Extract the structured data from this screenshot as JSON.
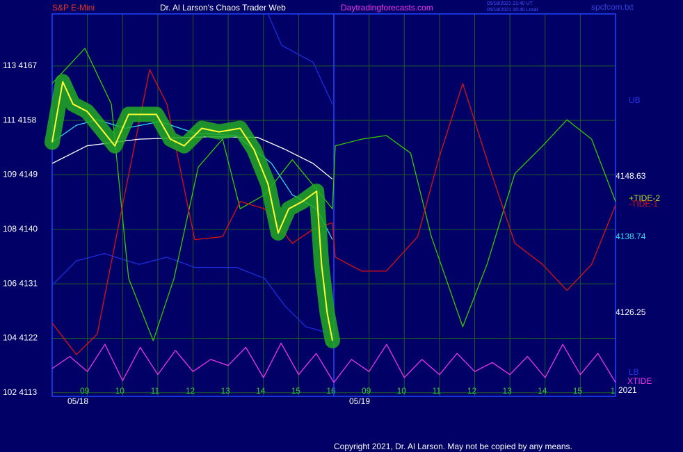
{
  "chart_data": {
    "type": "line",
    "title": "Dr. Al Larson's Chaos Trader Web",
    "symbol": "S&P E-Mini",
    "site": "Daytradingforecasts.com",
    "timestamp_ut": "05/18/2021 21:40 UT",
    "timestamp_local": "05/18/2021 16:40 Local",
    "file": "spcfcom.txt",
    "copyright": "Copyright 2021, Dr. Al Larson. May not be copied by any means.",
    "dates": [
      "05/18",
      "05/19"
    ],
    "year": "2021",
    "level_labels": [
      "4148.63",
      "4138.74",
      "4126.25"
    ],
    "xlim": [
      0,
      16
    ],
    "xticks": [
      {
        "value": 1,
        "label": "09"
      },
      {
        "value": 2,
        "label": "10"
      },
      {
        "value": 3,
        "label": "11"
      },
      {
        "value": 4,
        "label": "12"
      },
      {
        "value": 5,
        "label": "13"
      },
      {
        "value": 6,
        "label": "14"
      },
      {
        "value": 7,
        "label": "15"
      },
      {
        "value": 8,
        "label": "16"
      },
      {
        "value": 9,
        "label": "09"
      },
      {
        "value": 10,
        "label": "10"
      },
      {
        "value": 11,
        "label": "11"
      },
      {
        "value": 12,
        "label": "12"
      },
      {
        "value": 13,
        "label": "13"
      },
      {
        "value": 14,
        "label": "14"
      },
      {
        "value": 15,
        "label": "15"
      },
      {
        "value": 16,
        "label": "1"
      }
    ],
    "ylim": [
      4112.4,
      4175.6
    ],
    "yticks": [
      {
        "value": 4167,
        "label": "113  4167"
      },
      {
        "value": 4158,
        "label": "111  4158"
      },
      {
        "value": 4149,
        "label": "109  4149"
      },
      {
        "value": 4140,
        "label": "108  4140"
      },
      {
        "value": 4131,
        "label": "106  4131"
      },
      {
        "value": 4122,
        "label": "104  4122"
      },
      {
        "value": 4113,
        "label": "102  4113"
      }
    ],
    "grid": true,
    "series": [
      {
        "name": "UB",
        "color": "#1a2ee0",
        "x": [
          6.13,
          6.52,
          7.41,
          7.96
        ],
        "values": [
          4175.6,
          4170.4,
          4167.6,
          4160.7
        ]
      },
      {
        "name": "LB",
        "color": "#1a2ee0",
        "x": [
          0,
          0.69,
          1.48,
          2.47,
          3.26,
          4.05,
          5.24,
          6.03,
          6.62,
          7.21,
          7.96
        ],
        "values": [
          4130.8,
          4134.8,
          4136.0,
          4134.2,
          4135.4,
          4133.7,
          4133.7,
          4131.9,
          4127.3,
          4123.9,
          4122.7
        ]
      },
      {
        "name": "+TIDE-2",
        "color": "#33cc00",
        "x": [
          0,
          0.93,
          1.68,
          2.17,
          2.87,
          3.46,
          4.15,
          4.84,
          5.34,
          6.03,
          6.82,
          7.96,
          8.04,
          8.79,
          9.49,
          10.18,
          10.77,
          11.66,
          12.35,
          13.14,
          13.93,
          14.62,
          15.32,
          16.0
        ],
        "values": [
          4164.1,
          4169.9,
          4160.7,
          4131.9,
          4121.6,
          4131.9,
          4150.3,
          4154.9,
          4143.4,
          4145.7,
          4151.5,
          4143.4,
          4153.8,
          4154.9,
          4155.5,
          4152.6,
          4138.8,
          4123.9,
          4134.2,
          4149.2,
          4153.8,
          4158.1,
          4154.9,
          4144.6
        ]
      },
      {
        "name": "-TIDE-1",
        "color": "#dd1111",
        "x": [
          0,
          0.69,
          1.28,
          1.98,
          2.77,
          3.26,
          4.05,
          4.84,
          5.34,
          6.03,
          6.82,
          7.41,
          7.96,
          8.04,
          8.79,
          9.49,
          10.38,
          10.97,
          11.66,
          12.35,
          13.14,
          13.93,
          14.62,
          15.32,
          16.0
        ],
        "values": [
          4124.5,
          4119.3,
          4122.7,
          4143.4,
          4166.4,
          4160.7,
          4138.3,
          4138.8,
          4144.6,
          4143.4,
          4137.7,
          4140.0,
          4141.1,
          4135.4,
          4133.1,
          4133.1,
          4138.8,
          4151.5,
          4164.1,
          4151.5,
          4137.7,
          4134.2,
          4129.9,
          4134.2,
          4144.0
        ]
      },
      {
        "name": "XTIDE",
        "color": "#ee33ee",
        "x": [
          0,
          0.5,
          1,
          1.5,
          2,
          2.5,
          3,
          3.5,
          4,
          4.5,
          5,
          5.5,
          6,
          6.5,
          7,
          7.5,
          8,
          8.5,
          9,
          9.5,
          10,
          10.5,
          11,
          11.5,
          12,
          12.5,
          13,
          13.5,
          14,
          14.5,
          15,
          15.5,
          16
        ],
        "values": [
          4117.0,
          4119.0,
          4116.5,
          4121.0,
          4115.0,
          4120.5,
          4116.0,
          4120.0,
          4116.5,
          4118.5,
          4117.5,
          4120.5,
          4115.5,
          4121.2,
          4116.0,
          4119.5,
          4114.7,
          4118.5,
          4116.5,
          4121.0,
          4115.5,
          4118.5,
          4116.0,
          4119.5,
          4116.5,
          4118.0,
          4116.0,
          4119.0,
          4115.5,
          4121.0,
          4116.0,
          4119.5,
          4114.7
        ]
      },
      {
        "color": "#ffffff",
        "x": [
          0,
          0.99,
          2.47,
          4.45,
          5.83,
          6.62,
          7.41,
          7.96
        ],
        "values": [
          4150.9,
          4153.8,
          4154.9,
          4155.3,
          4155.2,
          4153.2,
          4150.9,
          4148.3
        ]
      },
      {
        "color": "#33ddee",
        "x": [
          0,
          0.69,
          1.28,
          2.07,
          3.06,
          4.05,
          5.24,
          6.23,
          6.82,
          7.51,
          7.96
        ],
        "values": [
          4154.4,
          4157.2,
          4158.1,
          4156.7,
          4157.8,
          4155.9,
          4155.5,
          4150.9,
          4145.7,
          4143.4,
          4138.3
        ]
      },
      {
        "color": "#ffff33",
        "halo": "#22aa22",
        "x": [
          0,
          0.3,
          0.59,
          0.99,
          1.38,
          1.78,
          2.17,
          2.57,
          2.96,
          3.36,
          3.75,
          4.25,
          4.74,
          5.34,
          5.73,
          6.13,
          6.42,
          6.72,
          7.11,
          7.51,
          7.65,
          7.81,
          7.96
        ],
        "values": [
          4154.4,
          4164.4,
          4160.7,
          4159.5,
          4156.7,
          4153.8,
          4159.0,
          4159.0,
          4159.0,
          4154.9,
          4153.8,
          4156.7,
          4156.1,
          4156.7,
          4153.2,
          4147.5,
          4139.4,
          4143.4,
          4144.6,
          4146.3,
          4134.2,
          4126.2,
          4121.6
        ]
      }
    ]
  }
}
